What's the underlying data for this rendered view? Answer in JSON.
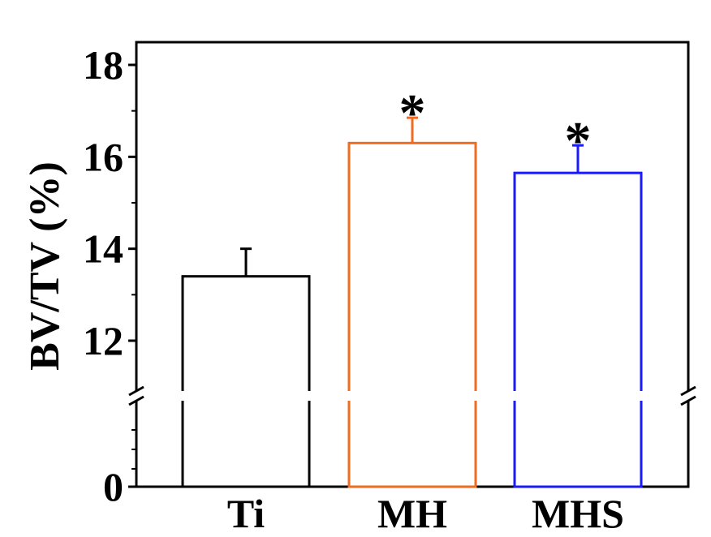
{
  "chart_data": {
    "type": "bar",
    "categories": [
      "Ti",
      "MH",
      "MHS"
    ],
    "values": [
      13.4,
      16.3,
      15.65
    ],
    "errors": [
      0.6,
      0.55,
      0.6
    ],
    "colors": [
      "#000000",
      "#f26b21",
      "#1a1aff"
    ],
    "significance": [
      "",
      "*",
      "*"
    ],
    "ylabel": "BV/TV (%)",
    "yticks": [
      0,
      12,
      14,
      16,
      18
    ],
    "ytick_labels": [
      "0",
      "12",
      "14",
      "16",
      "18"
    ],
    "ylim": [
      0,
      18.5
    ],
    "y_axis_break": [
      0,
      11
    ],
    "grid": false,
    "legend": "none"
  }
}
